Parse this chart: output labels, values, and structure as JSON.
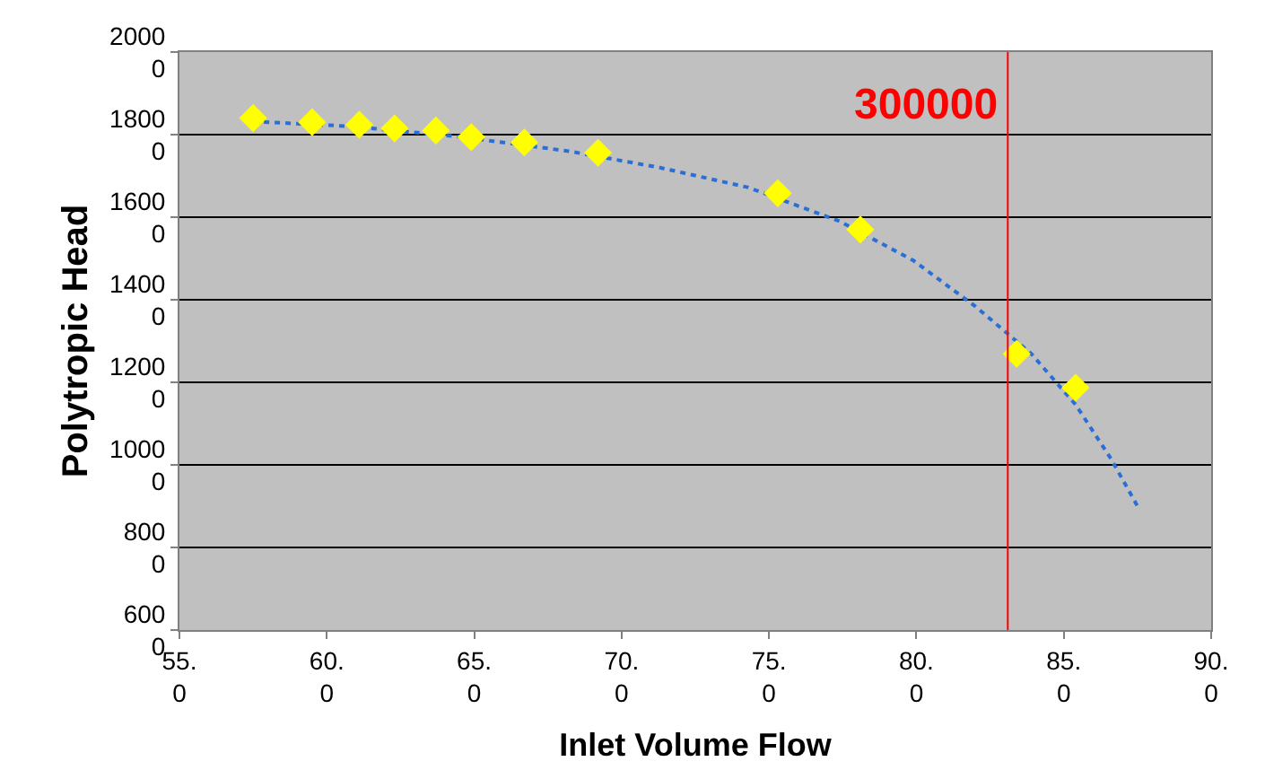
{
  "chart_data": {
    "type": "scatter",
    "xlabel": "Inlet Volume Flow",
    "ylabel": "Polytropic Head",
    "xlim": [
      55,
      90
    ],
    "xticks": [
      {
        "value": 55,
        "label": "55.0"
      },
      {
        "value": 60,
        "label": "60.0"
      },
      {
        "value": 65,
        "label": "65.0"
      },
      {
        "value": 70,
        "label": "70.0"
      },
      {
        "value": 75,
        "label": "75.0"
      },
      {
        "value": 80,
        "label": "80.0"
      },
      {
        "value": 85,
        "label": "85.0"
      },
      {
        "value": 90,
        "label": "90.0"
      }
    ],
    "ylim": [
      6000,
      20000
    ],
    "yticks": [
      6000,
      8000,
      10000,
      12000,
      14000,
      16000,
      18000,
      20000
    ],
    "grid": "y",
    "series": [
      {
        "type": "line",
        "color": "#2a6fd6",
        "line_style": "dotted",
        "marker": "none",
        "x": [
          57.5,
          60.8,
          64.5,
          68.2,
          71.3,
          74.3,
          77.4,
          79.9,
          82.0,
          83.9,
          85.4,
          86.6,
          87.5
        ],
        "values": [
          18320,
          18200,
          17950,
          17600,
          17200,
          16720,
          15900,
          14950,
          13840,
          12690,
          11460,
          10150,
          9000
        ]
      },
      {
        "color": "#ffff00",
        "marker": "diamond",
        "x": [
          57.5,
          59.5,
          61.1,
          62.3,
          63.7,
          64.9,
          66.7,
          69.2,
          75.3,
          78.1,
          83.4,
          85.4
        ],
        "values": [
          18400,
          18300,
          18240,
          18150,
          18100,
          17940,
          17810,
          17560,
          16580,
          15700,
          12690,
          11870
        ]
      }
    ],
    "ref_lines": [
      {
        "axis": "x",
        "value": 83.1,
        "color": "#ff0000",
        "line_style": "solid"
      }
    ],
    "annotations": [
      {
        "text": "300000",
        "x": 83.1,
        "y": 18700
      }
    ]
  }
}
